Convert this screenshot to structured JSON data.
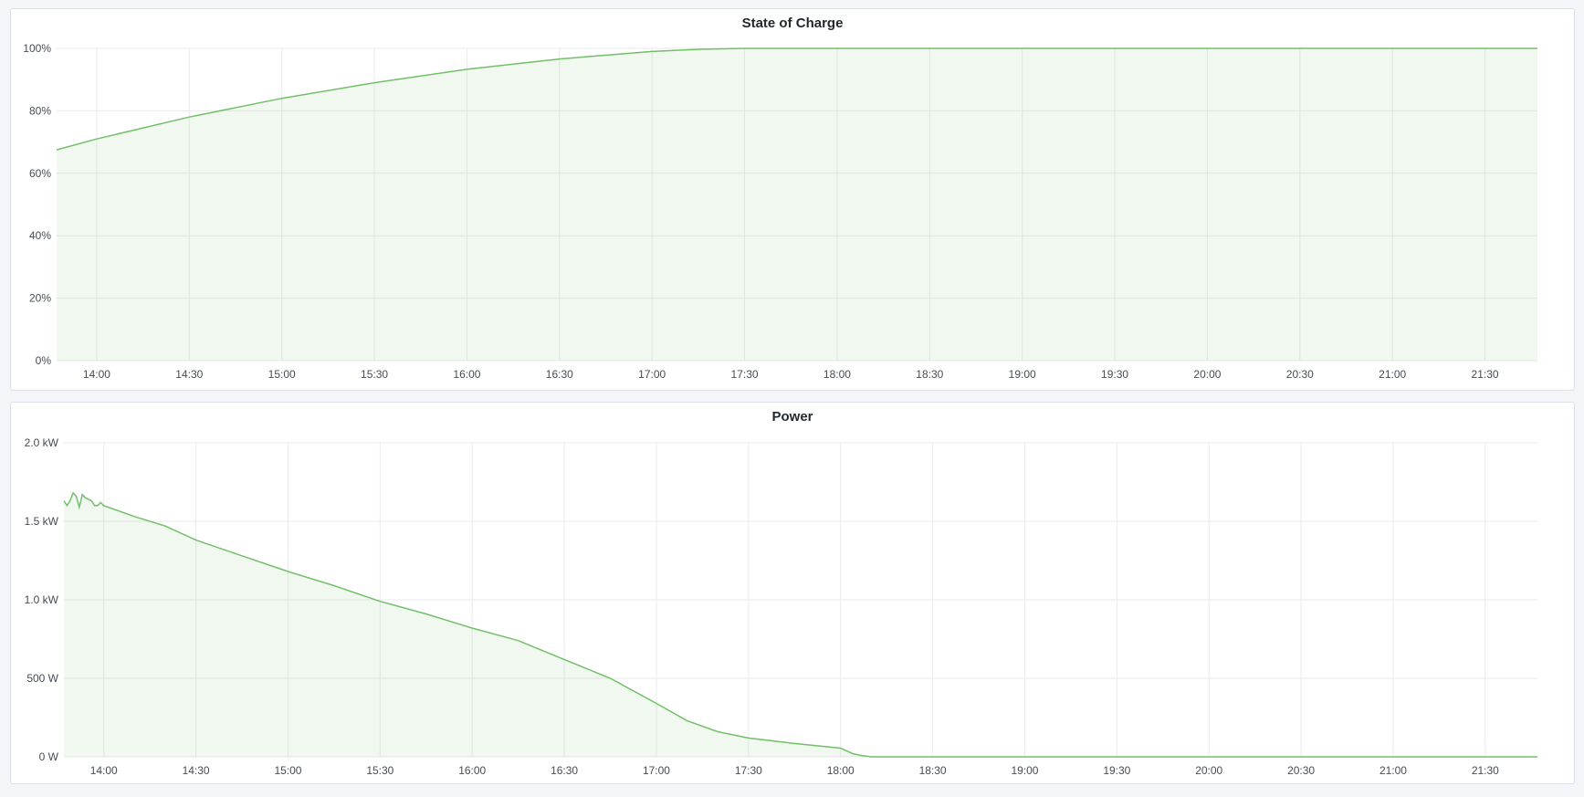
{
  "chart_data": [
    {
      "type": "area",
      "title": "State of Charge",
      "xlabel": "",
      "ylabel": "",
      "xlim": [
        "13:47",
        "21:47"
      ],
      "ylim": [
        0,
        100
      ],
      "yticks": [
        {
          "value": 0,
          "label": "0%"
        },
        {
          "value": 20,
          "label": "20%"
        },
        {
          "value": 40,
          "label": "40%"
        },
        {
          "value": 60,
          "label": "60%"
        },
        {
          "value": 80,
          "label": "80%"
        },
        {
          "value": 100,
          "label": "100%"
        }
      ],
      "xticks": [
        "14:00",
        "14:30",
        "15:00",
        "15:30",
        "16:00",
        "16:30",
        "17:00",
        "17:30",
        "18:00",
        "18:30",
        "19:00",
        "19:30",
        "20:00",
        "20:30",
        "21:00",
        "21:30"
      ],
      "grid": true,
      "legend": "none",
      "color": "#73bf69",
      "series": [
        {
          "x": [
            "13:47",
            "14:00",
            "14:30",
            "15:00",
            "15:30",
            "16:00",
            "16:30",
            "17:00",
            "17:15",
            "17:30",
            "18:00",
            "21:47"
          ],
          "y": [
            67.5,
            71,
            78,
            84,
            89,
            93.3,
            96.6,
            99,
            99.7,
            100,
            100,
            100
          ]
        }
      ]
    },
    {
      "type": "area",
      "title": "Power",
      "xlabel": "",
      "ylabel": "",
      "xlim": [
        "13:47",
        "21:47"
      ],
      "ylim": [
        0,
        2000
      ],
      "yticks": [
        {
          "value": 0,
          "label": "0 W"
        },
        {
          "value": 500,
          "label": "500 W"
        },
        {
          "value": 1000,
          "label": "1.0 kW"
        },
        {
          "value": 1500,
          "label": "1.5 kW"
        },
        {
          "value": 2000,
          "label": "2.0 kW"
        }
      ],
      "xticks": [
        "14:00",
        "14:30",
        "15:00",
        "15:30",
        "16:00",
        "16:30",
        "17:00",
        "17:30",
        "18:00",
        "18:30",
        "19:00",
        "19:30",
        "20:00",
        "20:30",
        "21:00",
        "21:30"
      ],
      "grid": true,
      "legend": "none",
      "color": "#73bf69",
      "series": [
        {
          "x": [
            "13:47",
            "13:48",
            "13:49",
            "13:50",
            "13:51",
            "13:52",
            "13:53",
            "13:54",
            "13:55",
            "13:56",
            "13:57",
            "13:58",
            "13:59",
            "14:00",
            "14:10",
            "14:20",
            "14:30",
            "14:45",
            "15:00",
            "15:15",
            "15:30",
            "15:45",
            "16:00",
            "16:15",
            "16:30",
            "16:45",
            "17:00",
            "17:10",
            "17:20",
            "17:30",
            "17:45",
            "18:00",
            "18:04",
            "18:07",
            "18:10",
            "21:47"
          ],
          "y": [
            1630,
            1600,
            1630,
            1680,
            1660,
            1590,
            1670,
            1650,
            1640,
            1630,
            1600,
            1600,
            1620,
            1600,
            1530,
            1470,
            1380,
            1280,
            1180,
            1090,
            990,
            910,
            820,
            740,
            620,
            500,
            340,
            230,
            160,
            120,
            85,
            55,
            20,
            8,
            0,
            0
          ]
        }
      ]
    }
  ]
}
